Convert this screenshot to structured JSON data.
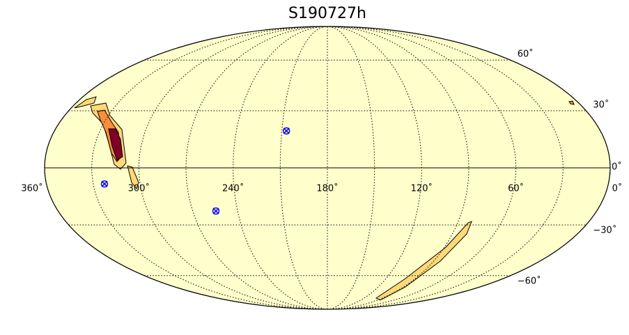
{
  "chart_data": {
    "type": "mollweide",
    "title": "S190727h",
    "xlim": [
      360,
      0
    ],
    "ylim": [
      -90,
      90
    ],
    "xticks": [
      {
        "value": 360,
        "label": "360˚"
      },
      {
        "value": 300,
        "label": "300˚"
      },
      {
        "value": 240,
        "label": "240˚"
      },
      {
        "value": 180,
        "label": "180˚"
      },
      {
        "value": 120,
        "label": "120˚"
      },
      {
        "value": 60,
        "label": "60˚"
      },
      {
        "value": 0,
        "label": "0˚"
      }
    ],
    "yticks": [
      {
        "value": 60,
        "label": "60˚"
      },
      {
        "value": 30,
        "label": "30˚"
      },
      {
        "value": 0,
        "label": "0˚"
      },
      {
        "value": -30,
        "label": "−30˚"
      },
      {
        "value": -60,
        "label": "−60˚"
      }
    ],
    "grid": true,
    "background": "#ffffcc",
    "markers": {
      "color": "blue",
      "lon": [
        207,
        254.5,
        322.8
      ],
      "lat": [
        19.2,
        -22.5,
        -8.3
      ]
    }
  }
}
